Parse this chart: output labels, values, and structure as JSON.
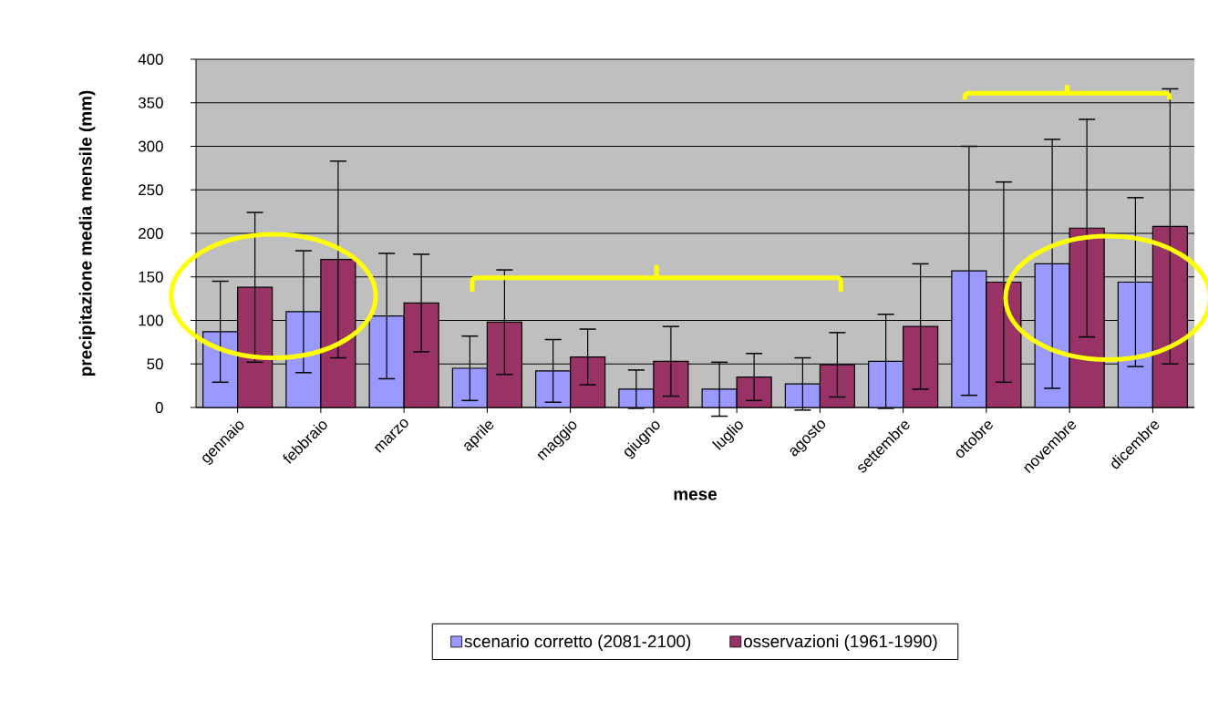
{
  "chart_data": {
    "type": "bar",
    "xlabel": "mese",
    "ylabel": "precipitazione media mensile (mm)",
    "categories": [
      "gennaio",
      "febbraio",
      "marzo",
      "aprile",
      "maggio",
      "giugno",
      "luglio",
      "agosto",
      "settembre",
      "ottobre",
      "novembre",
      "dicembre"
    ],
    "series": [
      {
        "name": "scenario corretto (2081-2100)",
        "color": "#9999ff",
        "values": [
          87,
          110,
          105,
          45,
          42,
          21,
          21,
          27,
          53,
          157,
          165,
          144
        ],
        "errors": [
          58,
          70,
          72,
          37,
          36,
          22,
          31,
          30,
          54,
          143,
          143,
          97
        ]
      },
      {
        "name": "osservazioni (1961-1990)",
        "color": "#993366",
        "values": [
          138,
          170,
          120,
          98,
          58,
          53,
          35,
          49,
          93,
          144,
          206,
          208
        ],
        "errors": [
          86,
          113,
          56,
          60,
          32,
          40,
          27,
          37,
          72,
          115,
          125,
          158
        ]
      }
    ],
    "ylim": [
      0,
      400
    ],
    "yticks": [
      0,
      50,
      100,
      150,
      200,
      250,
      300,
      350,
      400
    ],
    "grid": "y",
    "legend": "bottom"
  }
}
